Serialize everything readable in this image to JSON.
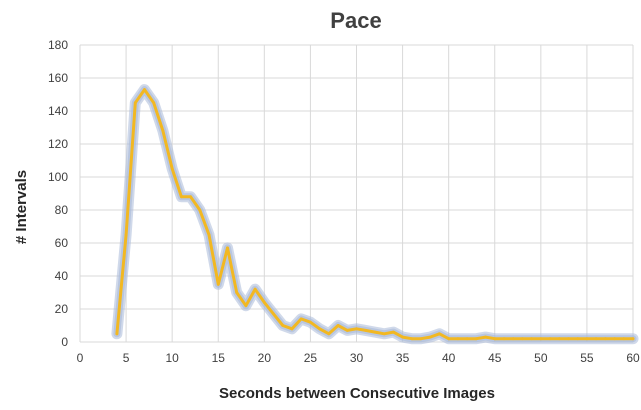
{
  "chart_data": {
    "type": "line",
    "title": "Pace",
    "xlabel": "Seconds between Consecutive Images",
    "ylabel": "# Intervals",
    "xlim": [
      0,
      60
    ],
    "ylim": [
      0,
      180
    ],
    "x_ticks": [
      "0",
      "5",
      "10",
      "15",
      "20",
      "25",
      "30",
      "35",
      "40",
      "45",
      "50",
      "55",
      "60"
    ],
    "y_ticks": [
      "0",
      "20",
      "40",
      "60",
      "80",
      "100",
      "120",
      "140",
      "160",
      "180"
    ],
    "grid": true,
    "legend": "none",
    "colors": {
      "line": "#f2b822",
      "glow": "#a9b9d8"
    },
    "series": [
      {
        "x": [
          4,
          5,
          6,
          7,
          8,
          9,
          10,
          11,
          12,
          13,
          14,
          15,
          16,
          17,
          18,
          19,
          20,
          21,
          22,
          23,
          24,
          25,
          26,
          27,
          28,
          29,
          30,
          31,
          32,
          33,
          34,
          35,
          36,
          37,
          38,
          39,
          40,
          41,
          42,
          43,
          44,
          45,
          46,
          47,
          48,
          49,
          50,
          51,
          52,
          53,
          54,
          55,
          56,
          57,
          58,
          59,
          60
        ],
        "values": [
          5,
          65,
          145,
          153,
          145,
          128,
          105,
          88,
          88,
          80,
          65,
          35,
          57,
          30,
          22,
          32,
          24,
          17,
          10,
          8,
          14,
          12,
          8,
          5,
          10,
          7,
          8,
          7,
          6,
          5,
          6,
          3,
          2,
          2,
          3,
          5,
          2,
          2,
          2,
          2,
          3,
          2,
          2,
          2,
          2,
          2,
          2,
          2,
          2,
          2,
          2,
          2,
          2,
          2,
          2,
          2,
          2
        ]
      }
    ]
  }
}
